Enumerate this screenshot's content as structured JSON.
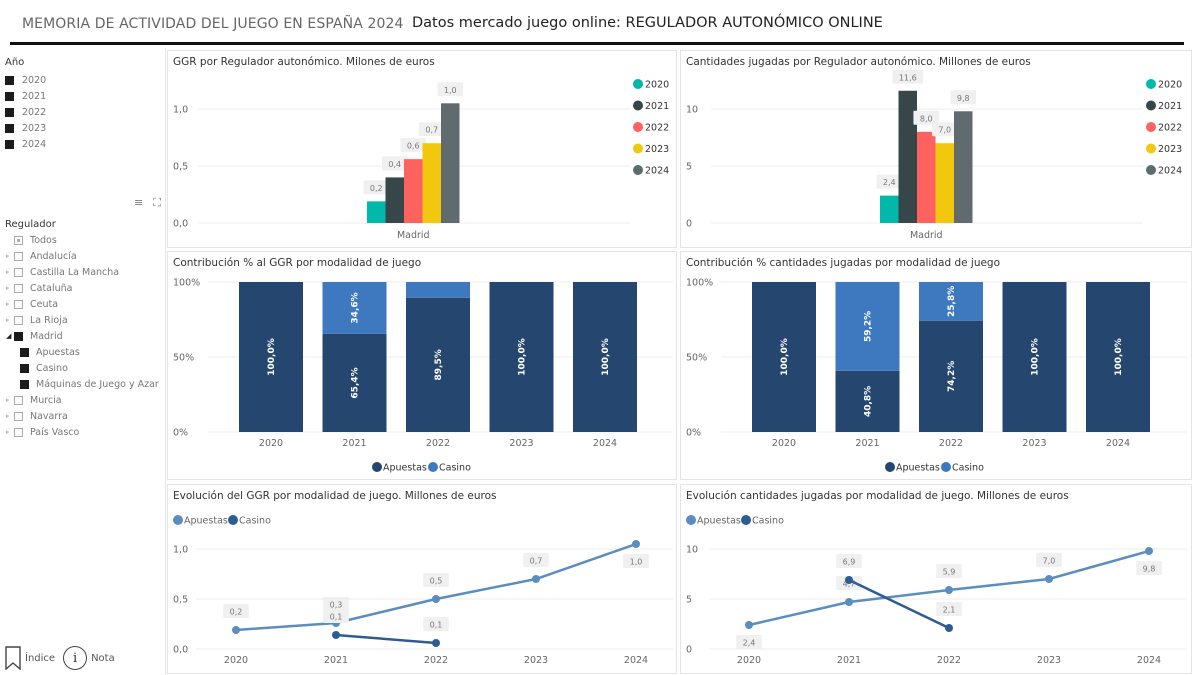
{
  "header": {
    "report_title": "MEMORIA DE ACTIVIDAD DEL JUEGO EN ESPAÑA 2024",
    "page_title": "Datos mercado juego online: REGULADOR AUTONÓMICO ONLINE"
  },
  "sidebar": {
    "year_slicer": {
      "title": "Año",
      "items": [
        {
          "label": "2020",
          "checked": true
        },
        {
          "label": "2021",
          "checked": true
        },
        {
          "label": "2022",
          "checked": true
        },
        {
          "label": "2023",
          "checked": true
        },
        {
          "label": "2024",
          "checked": true
        }
      ]
    },
    "tools": {
      "filter_icon": "≡",
      "focus_icon": "⛶"
    },
    "regulator_slicer": {
      "title": "Regulador",
      "items": [
        {
          "label": "Todos",
          "state": "partial",
          "level": 0,
          "expander": ""
        },
        {
          "label": "Andalucía",
          "state": "empty",
          "level": 0,
          "expander": "▸"
        },
        {
          "label": "Castilla La Mancha",
          "state": "empty",
          "level": 0,
          "expander": "▸"
        },
        {
          "label": "Cataluña",
          "state": "empty",
          "level": 0,
          "expander": "▸"
        },
        {
          "label": "Ceuta",
          "state": "empty",
          "level": 0,
          "expander": "▸"
        },
        {
          "label": "La Rioja",
          "state": "empty",
          "level": 0,
          "expander": "▸"
        },
        {
          "label": "Madrid",
          "state": "checked",
          "level": 0,
          "expander": "◢"
        },
        {
          "label": "Apuestas",
          "state": "checked",
          "level": 1,
          "expander": ""
        },
        {
          "label": "Casino",
          "state": "checked",
          "level": 1,
          "expander": ""
        },
        {
          "label": "Máquinas de Juego y Azar",
          "state": "checked",
          "level": 1,
          "expander": ""
        },
        {
          "label": "Murcia",
          "state": "empty",
          "level": 0,
          "expander": "▸"
        },
        {
          "label": "Navarra",
          "state": "empty",
          "level": 0,
          "expander": "▸"
        },
        {
          "label": "País Vasco",
          "state": "empty",
          "level": 0,
          "expander": "▸"
        }
      ]
    },
    "footer": {
      "index_label": "Índice",
      "note_label": "Nota",
      "note_icon": "i"
    }
  },
  "colors": {
    "y2020": "#01B8AA",
    "y2021": "#374649",
    "y2022": "#FD625E",
    "y2023": "#F2C80F",
    "y2024": "#5F6B6D",
    "apuestas_bar": "#25466F",
    "casino_bar": "#3E78BE",
    "apuestas_line": "#5B8DBF",
    "casino_line": "#2E5C92",
    "grid": "#eeeeee",
    "axis_text": "#666666",
    "label_bg": "#f0f0f0"
  },
  "chart_data": [
    {
      "id": "ggr_regulador",
      "type": "bar",
      "title": "GGR por Regulador autonómico. Milones de euros",
      "categories": [
        "Madrid"
      ],
      "series": [
        {
          "name": "2020",
          "values": [
            0.19
          ],
          "label": "0,2"
        },
        {
          "name": "2021",
          "values": [
            0.4
          ],
          "label": "0,4"
        },
        {
          "name": "2022",
          "values": [
            0.56
          ],
          "label": "0,6"
        },
        {
          "name": "2023",
          "values": [
            0.7
          ],
          "label": "0,7"
        },
        {
          "name": "2024",
          "values": [
            1.05
          ],
          "label": "1,0"
        }
      ],
      "yticks": [
        "0,0",
        "0,5",
        "1,0"
      ],
      "ytick_values": [
        0,
        0.5,
        1.0
      ],
      "ylim": [
        0,
        1.2
      ],
      "legend": "right",
      "grid": true
    },
    {
      "id": "jugadas_regulador",
      "type": "bar",
      "title": "Cantidades jugadas por Regulador autonómico. Millones de euros",
      "categories": [
        "Madrid"
      ],
      "series": [
        {
          "name": "2020",
          "values": [
            2.4
          ],
          "label": "2,4"
        },
        {
          "name": "2021",
          "values": [
            11.6
          ],
          "label": "11,6"
        },
        {
          "name": "2022",
          "values": [
            8.0
          ],
          "label": "8,0"
        },
        {
          "name": "2023",
          "values": [
            7.0
          ],
          "label": "7,0"
        },
        {
          "name": "2024",
          "values": [
            9.8
          ],
          "label": "9,8"
        }
      ],
      "yticks": [
        "0",
        "5",
        "10"
      ],
      "ytick_values": [
        0,
        5,
        10
      ],
      "ylim": [
        0,
        12.5
      ],
      "legend": "right",
      "grid": true
    },
    {
      "id": "contrib_ggr",
      "type": "bar",
      "stacked": "100%",
      "title": "Contribución % al GGR por modalidad de juego",
      "categories": [
        "2020",
        "2021",
        "2022",
        "2023",
        "2024"
      ],
      "series": [
        {
          "name": "Apuestas",
          "values": [
            100.0,
            65.4,
            89.5,
            100.0,
            100.0
          ],
          "labels": [
            "100,0%",
            "65,4%",
            "89,5%",
            "100,0%",
            "100,0%"
          ]
        },
        {
          "name": "Casino",
          "values": [
            0,
            34.6,
            10.5,
            0,
            0
          ],
          "labels": [
            "",
            "34,6%",
            "",
            "",
            ""
          ]
        }
      ],
      "yticks": [
        "0%",
        "50%",
        "100%"
      ],
      "ytick_values": [
        0,
        50,
        100
      ],
      "ylim": [
        0,
        100
      ],
      "legend": "bottom",
      "grid": true
    },
    {
      "id": "contrib_jugadas",
      "type": "bar",
      "stacked": "100%",
      "title": "Contribución % cantidades jugadas por modalidad de juego",
      "categories": [
        "2020",
        "2021",
        "2022",
        "2023",
        "2024"
      ],
      "series": [
        {
          "name": "Apuestas",
          "values": [
            100.0,
            40.8,
            74.2,
            100.0,
            100.0
          ],
          "labels": [
            "100,0%",
            "40,8%",
            "74,2%",
            "100,0%",
            "100,0%"
          ]
        },
        {
          "name": "Casino",
          "values": [
            0,
            59.2,
            25.8,
            0,
            0
          ],
          "labels": [
            "",
            "59,2%",
            "25,8%",
            "",
            ""
          ]
        }
      ],
      "yticks": [
        "0%",
        "50%",
        "100%"
      ],
      "ytick_values": [
        0,
        50,
        100
      ],
      "ylim": [
        0,
        100
      ],
      "legend": "bottom",
      "grid": true
    },
    {
      "id": "evol_ggr",
      "type": "line",
      "title": "Evolución del GGR por modalidad de juego. Millones de euros",
      "categories": [
        "2020",
        "2021",
        "2022",
        "2023",
        "2024"
      ],
      "series": [
        {
          "name": "Apuestas",
          "values": [
            0.19,
            0.26,
            0.5,
            0.7,
            1.05
          ],
          "labels": [
            "0,2",
            "0,3",
            "0,5",
            "0,7",
            "1,0"
          ],
          "label_pos": [
            "above",
            "above",
            "above",
            "above",
            "below"
          ]
        },
        {
          "name": "Casino",
          "values": [
            null,
            0.14,
            0.06,
            null,
            null
          ],
          "labels": [
            "",
            "0,1",
            "0,1",
            "",
            ""
          ],
          "label_pos": [
            "",
            "above",
            "above",
            "",
            ""
          ]
        }
      ],
      "yticks": [
        "0,0",
        "0,5",
        "1,0"
      ],
      "ytick_values": [
        0,
        0.5,
        1.0
      ],
      "ylim": [
        0,
        1.1
      ],
      "legend": "top-left",
      "grid": true
    },
    {
      "id": "evol_jugadas",
      "type": "line",
      "title": "Evolución cantidades jugadas por modalidad de juego. Millones de euros",
      "categories": [
        "2020",
        "2021",
        "2022",
        "2023",
        "2024"
      ],
      "series": [
        {
          "name": "Apuestas",
          "values": [
            2.4,
            4.7,
            5.9,
            7.0,
            9.8
          ],
          "labels": [
            "2,4",
            "4,7",
            "5,9",
            "7,0",
            "9,8"
          ],
          "label_pos": [
            "below",
            "above",
            "above",
            "above",
            "below"
          ]
        },
        {
          "name": "Casino",
          "values": [
            null,
            6.9,
            2.1,
            null,
            null
          ],
          "labels": [
            "",
            "6,9",
            "2,1",
            "",
            ""
          ],
          "label_pos": [
            "",
            "above",
            "above",
            "",
            ""
          ]
        }
      ],
      "yticks": [
        "0",
        "5",
        "10"
      ],
      "ytick_values": [
        0,
        5,
        10
      ],
      "ylim": [
        0,
        10.5
      ],
      "legend": "top-left",
      "grid": true
    }
  ]
}
